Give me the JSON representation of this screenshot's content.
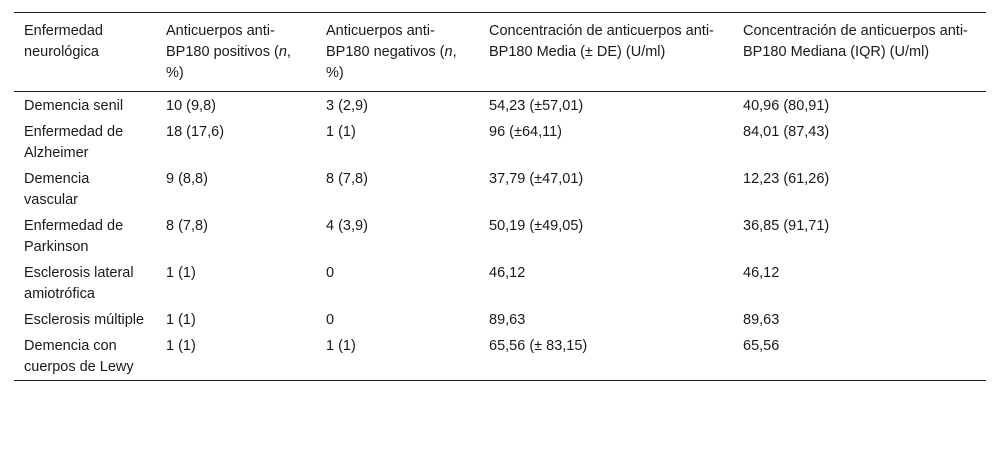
{
  "table": {
    "headers": [
      {
        "pre": "Enfermedad neurológica",
        "em": "",
        "post": ""
      },
      {
        "pre": "Anticuerpos anti-BP180 positivos (",
        "em": "n",
        "post": ", %)"
      },
      {
        "pre": "Anticuerpos anti-BP180 negativos (",
        "em": "n",
        "post": ", %)"
      },
      {
        "pre": "Concentración de anticuerpos anti-BP180 Media (± DE) (U/ml)",
        "em": "",
        "post": ""
      },
      {
        "pre": "Concentración de anticuerpos anti-BP180 Mediana (IQR) (U/ml)",
        "em": "",
        "post": ""
      }
    ],
    "rows": [
      [
        "Demencia senil",
        "10 (9,8)",
        "3 (2,9)",
        "54,23 (±57,01)",
        "40,96 (80,91)"
      ],
      [
        "Enfermedad de Alzheimer",
        "18 (17,6)",
        "1 (1)",
        "96 (±64,11)",
        "84,01 (87,43)"
      ],
      [
        "Demencia vascular",
        "9 (8,8)",
        "8 (7,8)",
        "37,79 (±47,01)",
        "12,23 (61,26)"
      ],
      [
        "Enfermedad de Parkinson",
        "8 (7,8)",
        "4 (3,9)",
        "50,19 (±49,05)",
        "36,85 (91,71)"
      ],
      [
        "Esclerosis lateral amiotrófica",
        "1 (1)",
        "0",
        "46,12",
        "46,12"
      ],
      [
        "Esclerosis múltiple",
        "1 (1)",
        "0",
        "89,63",
        "89,63"
      ],
      [
        "Demencia con cuerpos de Lewy",
        "1 (1)",
        "1 (1)",
        "65,56 (± 83,15)",
        "65,56"
      ]
    ]
  }
}
